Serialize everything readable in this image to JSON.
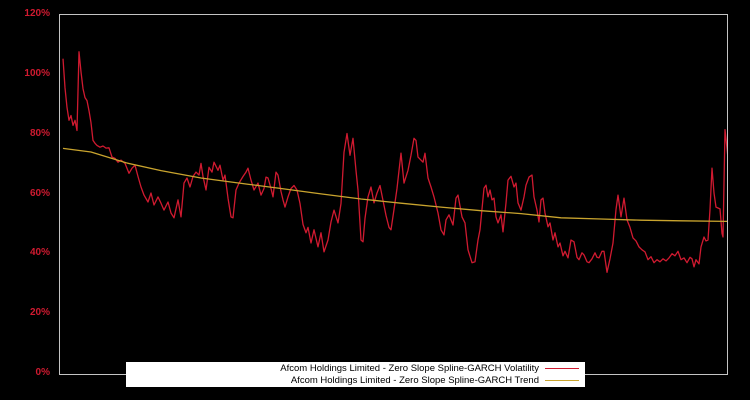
{
  "window": {
    "background_color": "#000000",
    "plot_border_color": "#c4c4c4",
    "axis_label_color": "#d01a30",
    "legend_background": "#ffffff",
    "legend_text_color": "#000000"
  },
  "chart_data": {
    "type": "line",
    "title": "",
    "xlabel": "",
    "ylabel": "",
    "grid": false,
    "x_axis": {
      "tick_labels": []
    },
    "y_axis": {
      "min": 0,
      "max": 120,
      "unit": "%",
      "ticks": [
        0,
        20,
        40,
        60,
        80,
        100,
        120
      ],
      "tick_labels": [
        "0%",
        "20%",
        "40%",
        "60%",
        "80%",
        "100%",
        "120%"
      ]
    },
    "legend": {
      "position": "bottom-left",
      "entries": [
        {
          "label": "Afcom Holdings Limited - Zero Slope Spline-GARCH Volatility",
          "color": "#d01a30"
        },
        {
          "label": "Afcom Holdings Limited - Zero Slope Spline-GARCH Trend",
          "color": "#c9a42e"
        }
      ]
    },
    "series": [
      {
        "name": "Afcom Holdings Limited - Zero Slope Spline-GARCH Volatility",
        "color": "#d01a30",
        "width": 1.3,
        "points_format": "[x_pixel_position, percent_value]",
        "points": [
          [
            62,
            105.4
          ],
          [
            64,
            95.7
          ],
          [
            66,
            89.1
          ],
          [
            68,
            84.8
          ],
          [
            70,
            86.4
          ],
          [
            72,
            83.1
          ],
          [
            74,
            84.8
          ],
          [
            76,
            81.4
          ],
          [
            78,
            107.7
          ],
          [
            80,
            101.0
          ],
          [
            82,
            95.4
          ],
          [
            84,
            92.4
          ],
          [
            86,
            91.4
          ],
          [
            88,
            88.0
          ],
          [
            90,
            84.0
          ],
          [
            92,
            78.1
          ],
          [
            94,
            77.1
          ],
          [
            96,
            76.4
          ],
          [
            99,
            75.8
          ],
          [
            102,
            76.2
          ],
          [
            105,
            75.5
          ],
          [
            108,
            75.6
          ],
          [
            111,
            72.5
          ],
          [
            114,
            72.1
          ],
          [
            117,
            70.8
          ],
          [
            120,
            71.5
          ],
          [
            124,
            70.4
          ],
          [
            128,
            67.1
          ],
          [
            131,
            68.8
          ],
          [
            134,
            69.8
          ],
          [
            137,
            66.0
          ],
          [
            140,
            62.5
          ],
          [
            143,
            59.8
          ],
          [
            147,
            57.5
          ],
          [
            150,
            60.5
          ],
          [
            153,
            56.5
          ],
          [
            157,
            59.2
          ],
          [
            160,
            57.1
          ],
          [
            163,
            54.8
          ],
          [
            167,
            57.5
          ],
          [
            170,
            53.8
          ],
          [
            173,
            52.2
          ],
          [
            177,
            58.2
          ],
          [
            180,
            52.5
          ],
          [
            183,
            63.8
          ],
          [
            186,
            65.5
          ],
          [
            189,
            62.5
          ],
          [
            192,
            66.0
          ],
          [
            195,
            67.5
          ],
          [
            198,
            66.5
          ],
          [
            200,
            70.4
          ],
          [
            202,
            66.0
          ],
          [
            205,
            61.5
          ],
          [
            208,
            69.1
          ],
          [
            211,
            67.5
          ],
          [
            213,
            70.8
          ],
          [
            217,
            68.1
          ],
          [
            219,
            69.8
          ],
          [
            222,
            64.8
          ],
          [
            224,
            66.5
          ],
          [
            227,
            58.8
          ],
          [
            230,
            52.5
          ],
          [
            232,
            52.2
          ],
          [
            235,
            61.5
          ],
          [
            238,
            63.8
          ],
          [
            242,
            66.0
          ],
          [
            245,
            67.5
          ],
          [
            247,
            68.8
          ],
          [
            250,
            64.8
          ],
          [
            253,
            61.5
          ],
          [
            257,
            63.8
          ],
          [
            260,
            59.8
          ],
          [
            263,
            62.0
          ],
          [
            265,
            65.8
          ],
          [
            267,
            65.5
          ],
          [
            270,
            62.0
          ],
          [
            272,
            59.2
          ],
          [
            275,
            67.5
          ],
          [
            277,
            66.5
          ],
          [
            280,
            61.0
          ],
          [
            282,
            58.2
          ],
          [
            284,
            55.8
          ],
          [
            287,
            59.2
          ],
          [
            290,
            62.0
          ],
          [
            293,
            63.0
          ],
          [
            296,
            61.5
          ],
          [
            299,
            57.0
          ],
          [
            302,
            50.0
          ],
          [
            305,
            47.2
          ],
          [
            307,
            49.0
          ],
          [
            310,
            43.8
          ],
          [
            313,
            48.2
          ],
          [
            317,
            42.5
          ],
          [
            320,
            47.2
          ],
          [
            323,
            40.8
          ],
          [
            327,
            44.8
          ],
          [
            330,
            50.8
          ],
          [
            333,
            54.8
          ],
          [
            337,
            50.5
          ],
          [
            340,
            57.0
          ],
          [
            343,
            74.1
          ],
          [
            346,
            80.4
          ],
          [
            349,
            73.1
          ],
          [
            352,
            78.8
          ],
          [
            355,
            68.0
          ],
          [
            357,
            61.5
          ],
          [
            360,
            44.8
          ],
          [
            362,
            44.2
          ],
          [
            364,
            52.0
          ],
          [
            367,
            59.2
          ],
          [
            370,
            62.5
          ],
          [
            373,
            57.2
          ],
          [
            376,
            60.5
          ],
          [
            379,
            63.0
          ],
          [
            382,
            58.0
          ],
          [
            385,
            53.0
          ],
          [
            388,
            49.0
          ],
          [
            390,
            48.2
          ],
          [
            393,
            55.0
          ],
          [
            396,
            62.0
          ],
          [
            398,
            68.0
          ],
          [
            400,
            73.8
          ],
          [
            403,
            63.8
          ],
          [
            407,
            68.1
          ],
          [
            410,
            73.1
          ],
          [
            413,
            78.8
          ],
          [
            415,
            78.1
          ],
          [
            417,
            72.5
          ],
          [
            422,
            70.8
          ],
          [
            424,
            73.8
          ],
          [
            427,
            65.5
          ],
          [
            430,
            62.5
          ],
          [
            433,
            59.2
          ],
          [
            437,
            53.8
          ],
          [
            440,
            48.2
          ],
          [
            443,
            46.5
          ],
          [
            445,
            51.5
          ],
          [
            448,
            53.2
          ],
          [
            452,
            49.8
          ],
          [
            455,
            58.8
          ],
          [
            457,
            59.8
          ],
          [
            461,
            52.5
          ],
          [
            464,
            50.5
          ],
          [
            467,
            41.5
          ],
          [
            471,
            37.2
          ],
          [
            474,
            37.5
          ],
          [
            477,
            44.8
          ],
          [
            479,
            48.2
          ],
          [
            483,
            62.1
          ],
          [
            485,
            63.1
          ],
          [
            487,
            59.2
          ],
          [
            489,
            61.5
          ],
          [
            491,
            58.2
          ],
          [
            493,
            58.8
          ],
          [
            495,
            52.5
          ],
          [
            497,
            50.5
          ],
          [
            500,
            53.2
          ],
          [
            502,
            47.5
          ],
          [
            505,
            57.2
          ],
          [
            507,
            64.8
          ],
          [
            510,
            66.1
          ],
          [
            513,
            62.5
          ],
          [
            515,
            63.8
          ],
          [
            517,
            57.2
          ],
          [
            520,
            54.8
          ],
          [
            523,
            59.2
          ],
          [
            525,
            63.1
          ],
          [
            528,
            65.8
          ],
          [
            531,
            66.5
          ],
          [
            533,
            59.2
          ],
          [
            536,
            54.8
          ],
          [
            538,
            50.8
          ],
          [
            540,
            58.2
          ],
          [
            542,
            58.8
          ],
          [
            544,
            53.8
          ],
          [
            547,
            49.2
          ],
          [
            549,
            50.5
          ],
          [
            552,
            44.8
          ],
          [
            554,
            47.2
          ],
          [
            557,
            42.5
          ],
          [
            559,
            43.8
          ],
          [
            562,
            39.5
          ],
          [
            564,
            41.0
          ],
          [
            567,
            38.8
          ],
          [
            570,
            44.8
          ],
          [
            573,
            44.2
          ],
          [
            576,
            39.0
          ],
          [
            578,
            38.2
          ],
          [
            581,
            40.5
          ],
          [
            583,
            39.8
          ],
          [
            586,
            37.5
          ],
          [
            588,
            37.2
          ],
          [
            591,
            38.5
          ],
          [
            594,
            40.5
          ],
          [
            596,
            39.0
          ],
          [
            598,
            38.8
          ],
          [
            601,
            41.0
          ],
          [
            603,
            41.0
          ],
          [
            606,
            34.0
          ],
          [
            609,
            38.5
          ],
          [
            612,
            43.8
          ],
          [
            615,
            55.0
          ],
          [
            617,
            59.8
          ],
          [
            620,
            52.5
          ],
          [
            623,
            58.8
          ],
          [
            626,
            51.5
          ],
          [
            629,
            49.0
          ],
          [
            632,
            45.5
          ],
          [
            635,
            44.5
          ],
          [
            638,
            42.5
          ],
          [
            641,
            41.5
          ],
          [
            644,
            40.8
          ],
          [
            647,
            38.2
          ],
          [
            650,
            39.2
          ],
          [
            653,
            37.2
          ],
          [
            656,
            38.2
          ],
          [
            659,
            37.5
          ],
          [
            662,
            38.5
          ],
          [
            665,
            37.8
          ],
          [
            668,
            38.8
          ],
          [
            671,
            40.2
          ],
          [
            674,
            39.5
          ],
          [
            677,
            41.0
          ],
          [
            680,
            38.2
          ],
          [
            683,
            38.8
          ],
          [
            686,
            37.2
          ],
          [
            689,
            39.0
          ],
          [
            691,
            38.5
          ],
          [
            693,
            35.8
          ],
          [
            695,
            38.2
          ],
          [
            698,
            36.8
          ],
          [
            700,
            42.5
          ],
          [
            703,
            45.8
          ],
          [
            705,
            44.5
          ],
          [
            707,
            44.8
          ],
          [
            709,
            55.0
          ],
          [
            711,
            68.8
          ],
          [
            713,
            60.5
          ],
          [
            715,
            55.8
          ],
          [
            717,
            55.5
          ],
          [
            719,
            55.2
          ],
          [
            721,
            47.0
          ],
          [
            722,
            45.8
          ],
          [
            724,
            81.7
          ],
          [
            726,
            75.4
          ],
          [
            727,
            72.1
          ],
          [
            728,
            82.1
          ]
        ]
      },
      {
        "name": "Afcom Holdings Limited - Zero Slope Spline-GARCH Trend",
        "color": "#c9a42e",
        "width": 1.3,
        "points_format": "[x_pixel_position, percent_value]",
        "points": [
          [
            62,
            75.4
          ],
          [
            90,
            74.2
          ],
          [
            125,
            70.6
          ],
          [
            160,
            68.0
          ],
          [
            200,
            65.5
          ],
          [
            245,
            63.5
          ],
          [
            280,
            62.0
          ],
          [
            320,
            60.2
          ],
          [
            360,
            58.5
          ],
          [
            400,
            57.1
          ],
          [
            440,
            55.8
          ],
          [
            480,
            54.6
          ],
          [
            520,
            53.6
          ],
          [
            560,
            52.2
          ],
          [
            600,
            51.8
          ],
          [
            640,
            51.4
          ],
          [
            680,
            51.2
          ],
          [
            728,
            51.0
          ]
        ]
      }
    ]
  }
}
